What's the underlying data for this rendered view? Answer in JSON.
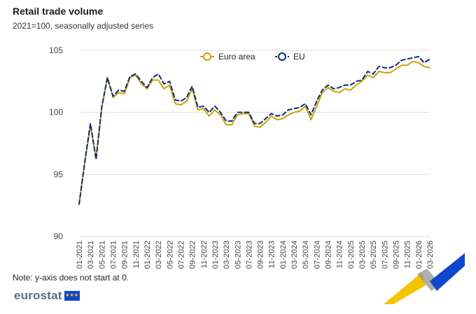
{
  "header": {
    "title": "Retail trade volume",
    "subtitle": "2021=100, seasonally adjusted series"
  },
  "footer": {
    "note": "Note: y-axis does not start at 0.",
    "logo_text": "eurostat"
  },
  "colors": {
    "euro_area": "#c8a400",
    "eu": "#0e2a78",
    "grid": "#dddddd",
    "axis_text": "#444444"
  },
  "chart_data": {
    "type": "line",
    "ylim": [
      90,
      105
    ],
    "yticks": [
      90,
      95,
      100,
      105
    ],
    "grid": "horizontal",
    "legend_position": "top-center",
    "x": [
      "01-2021",
      "02-2021",
      "03-2021",
      "04-2021",
      "05-2021",
      "06-2021",
      "07-2021",
      "08-2021",
      "09-2021",
      "10-2021",
      "11-2021",
      "12-2021",
      "01-2022",
      "02-2022",
      "03-2022",
      "04-2022",
      "05-2022",
      "06-2022",
      "07-2022",
      "08-2022",
      "09-2022",
      "10-2022",
      "11-2022",
      "12-2022",
      "01-2023",
      "02-2023",
      "03-2023",
      "04-2023",
      "05-2023",
      "06-2023",
      "07-2023",
      "08-2023",
      "09-2023",
      "10-2023",
      "11-2023",
      "12-2023",
      "01-2024",
      "02-2024",
      "03-2024",
      "04-2024",
      "05-2024",
      "06-2024",
      "07-2024",
      "08-2024",
      "09-2024",
      "10-2024",
      "11-2024",
      "12-2024",
      "01-2025",
      "02-2025",
      "03-2025",
      "04-2025",
      "05-2025",
      "06-2025",
      "07-2025",
      "08-2025",
      "09-2025",
      "10-2025",
      "11-2025",
      "12-2025",
      "01-2026",
      "02-2026",
      "03-2026"
    ],
    "xtick_labels": [
      "01-2021",
      "03-2021",
      "05-2021",
      "07-2021",
      "09-2021",
      "11-2021",
      "01-2022",
      "03-2022",
      "05-2022",
      "07-2022",
      "09-2022",
      "11-2022",
      "01-2023",
      "03-2023",
      "05-2023",
      "07-2023",
      "09-2023",
      "11-2023",
      "01-2024",
      "03-2024",
      "05-2024",
      "07-2024",
      "09-2024",
      "11-2024",
      "01-2025",
      "03-2025",
      "05-2025",
      "07-2025",
      "09-2025",
      "11-2025",
      "01-2026",
      "03-2026"
    ],
    "series": [
      {
        "name": "Euro area",
        "style": "solid",
        "values": [
          92.6,
          95.9,
          99.0,
          96.3,
          100.4,
          102.8,
          101.2,
          101.6,
          101.5,
          102.8,
          103.0,
          102.3,
          101.9,
          102.6,
          102.6,
          101.9,
          102.2,
          100.7,
          100.6,
          100.9,
          101.9,
          100.2,
          100.3,
          99.7,
          100.2,
          99.8,
          99.0,
          99.0,
          99.8,
          99.9,
          99.9,
          98.9,
          98.8,
          99.2,
          99.7,
          99.4,
          99.5,
          99.8,
          100.0,
          100.1,
          100.5,
          99.4,
          100.5,
          101.6,
          102.0,
          101.7,
          101.6,
          101.9,
          101.8,
          102.2,
          102.5,
          103.0,
          102.8,
          103.3,
          103.2,
          103.2,
          103.5,
          103.8,
          103.8,
          104.1,
          104.0,
          103.7,
          103.6
        ]
      },
      {
        "name": "EU",
        "style": "dashed",
        "values": [
          92.6,
          96.0,
          99.1,
          96.2,
          100.4,
          102.8,
          101.3,
          101.8,
          101.7,
          102.9,
          103.1,
          102.5,
          102.0,
          102.8,
          103.1,
          102.3,
          102.5,
          101.0,
          100.9,
          101.2,
          102.1,
          100.4,
          100.5,
          100.0,
          100.5,
          100.0,
          99.3,
          99.3,
          100.0,
          100.0,
          100.0,
          99.1,
          99.1,
          99.5,
          99.9,
          99.7,
          99.8,
          100.2,
          100.3,
          100.4,
          100.7,
          99.8,
          100.9,
          101.8,
          102.2,
          101.9,
          102.0,
          102.2,
          102.2,
          102.5,
          102.6,
          103.3,
          103.1,
          103.7,
          103.6,
          103.6,
          103.8,
          104.2,
          104.3,
          104.4,
          104.5,
          104.0,
          104.3
        ]
      }
    ]
  }
}
